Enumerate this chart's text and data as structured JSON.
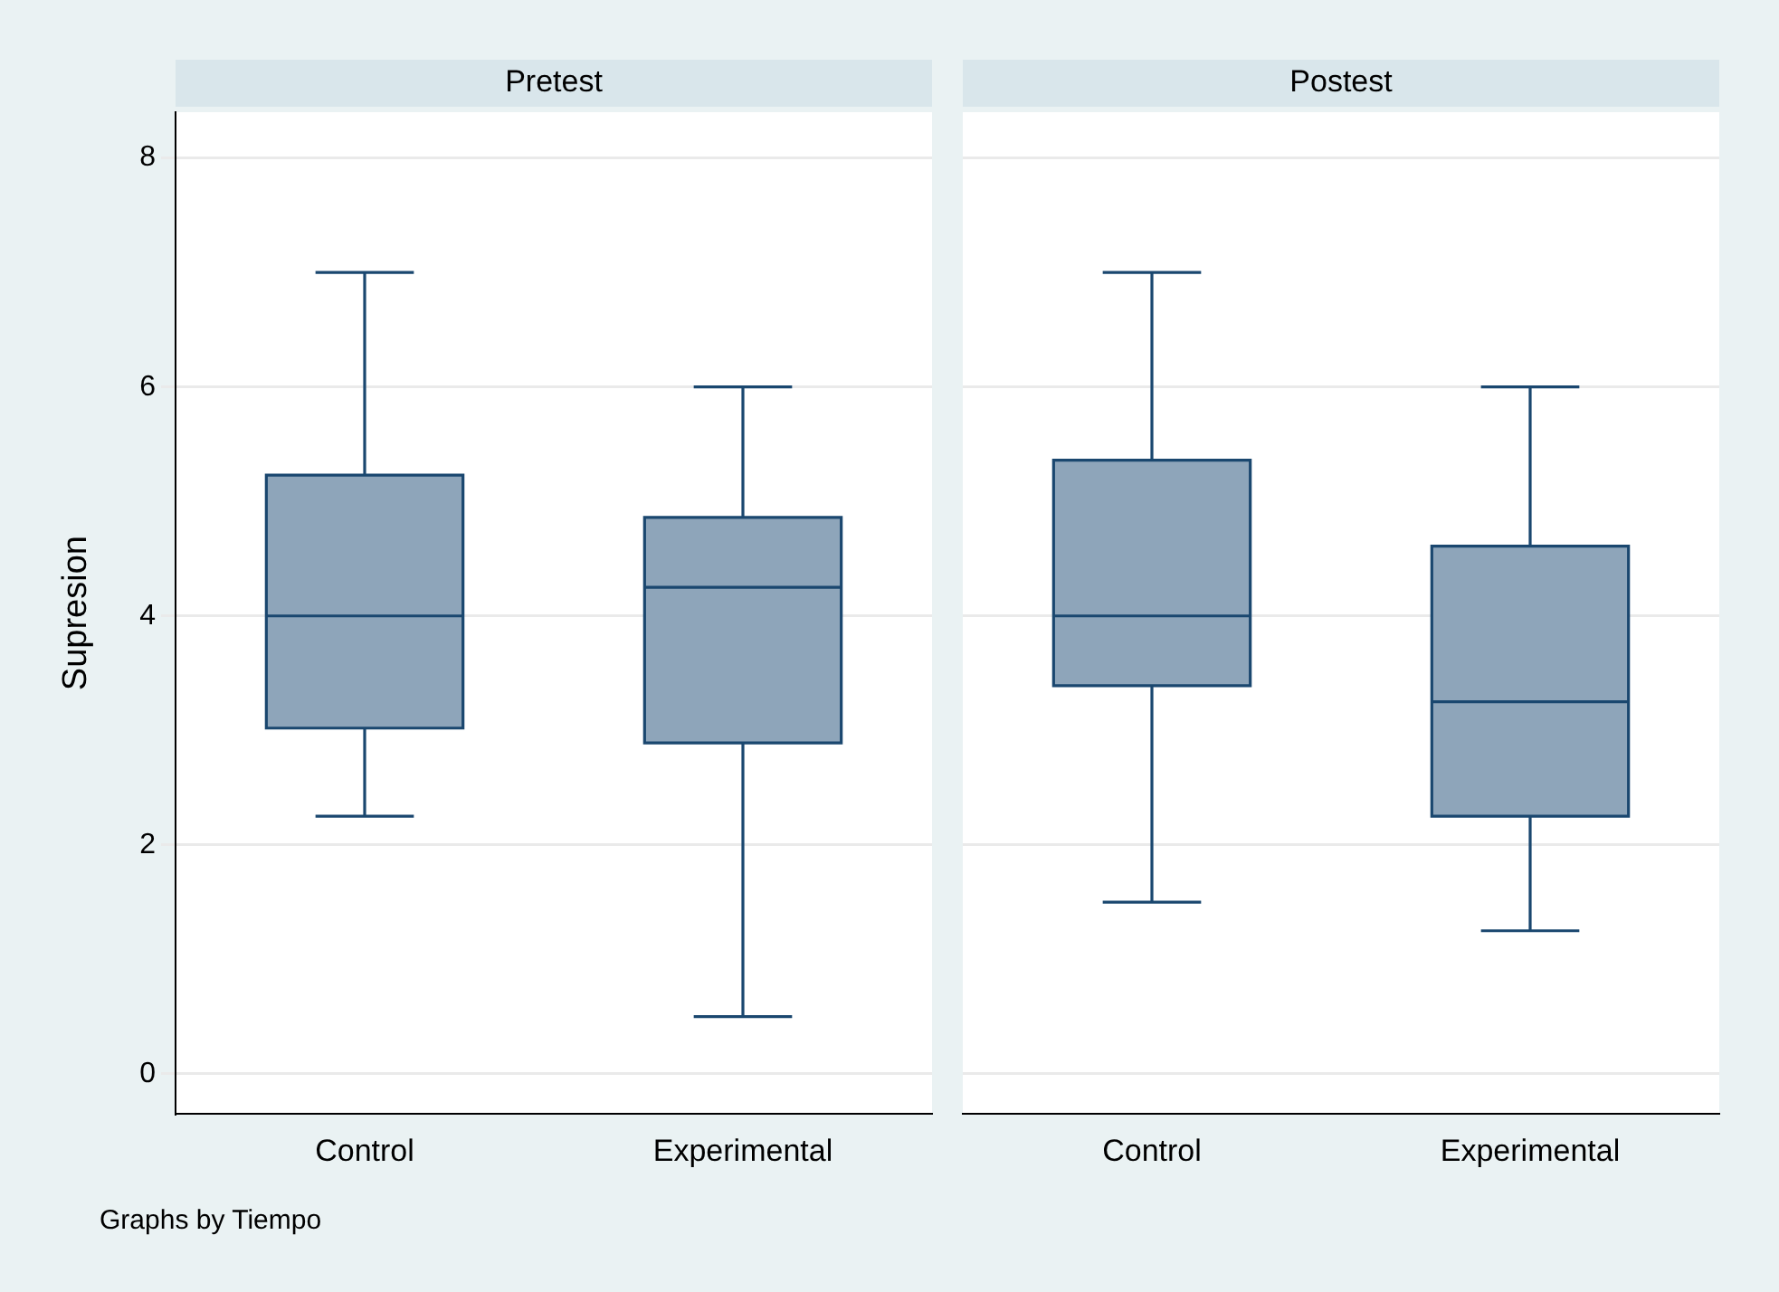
{
  "chart_data": [
    {
      "type": "box",
      "title": "Pretest",
      "ylabel": "Supresion",
      "categories": [
        "Control",
        "Experimental"
      ],
      "color": "#8ea5ba",
      "boxes": [
        {
          "low": 2.25,
          "q1": 3.02,
          "median": 4.0,
          "q3": 5.23,
          "high": 7.0
        },
        {
          "low": 0.5,
          "q1": 2.89,
          "median": 4.25,
          "q3": 4.86,
          "high": 6.0
        }
      ],
      "ylim": [
        -0.35,
        8.4
      ],
      "yticks": [
        0,
        2,
        4,
        6,
        8
      ],
      "grid": "y",
      "legend": false,
      "annotations": [
        "Graphs by Tiempo"
      ]
    },
    {
      "type": "box",
      "title": "Postest",
      "categories": [
        "Control",
        "Experimental"
      ],
      "color": "#8ea5ba",
      "boxes": [
        {
          "low": 1.5,
          "q1": 3.39,
          "median": 4.0,
          "q3": 5.36,
          "high": 7.0
        },
        {
          "low": 1.25,
          "q1": 2.25,
          "median": 3.25,
          "q3": 4.61,
          "high": 6.0
        }
      ],
      "ylim": [
        -0.35,
        8.4
      ],
      "yticks": [
        0,
        2,
        4,
        6,
        8
      ],
      "grid": "y",
      "legend": false,
      "tick_labels": "x"
    }
  ]
}
